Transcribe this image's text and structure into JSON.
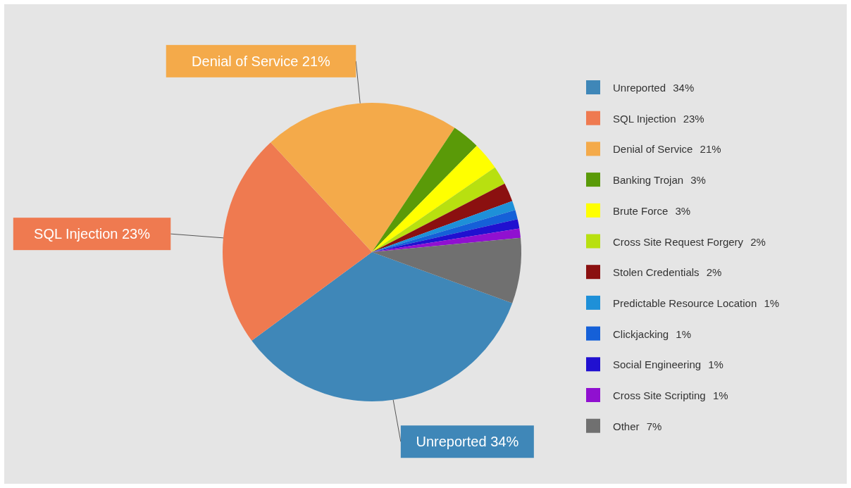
{
  "chart_data": {
    "type": "pie",
    "categories": [
      "Unreported",
      "SQL Injection",
      "Denial of Service",
      "Banking Trojan",
      "Brute Force",
      "Cross Site Request Forgery",
      "Stolen Credentials",
      "Predictable Resource Location",
      "Clickjacking",
      "Social Engineering",
      "Cross Site Scripting",
      "Other"
    ],
    "values": [
      34,
      23,
      21,
      3,
      3,
      2,
      2,
      1,
      1,
      1,
      1,
      7
    ],
    "value_labels": [
      "34%",
      "23%",
      "21%",
      "3%",
      "3%",
      "2%",
      "2%",
      "1%",
      "1%",
      "1%",
      "1%",
      "7%"
    ],
    "colors": [
      "#3f87b8",
      "#ef7a50",
      "#f4aa4a",
      "#5a9a08",
      "#ffff00",
      "#b8e010",
      "#8b1010",
      "#1e90d8",
      "#1560d8",
      "#2010d0",
      "#9010d0",
      "#707070"
    ],
    "annotations": [
      {
        "text": "Denial of Service 21%",
        "x": "Denial of Service"
      },
      {
        "text": "SQL Injection 23%",
        "x": "SQL Injection"
      },
      {
        "text": "Unreported 34%",
        "x": "Unreported"
      }
    ],
    "legend": "right"
  }
}
